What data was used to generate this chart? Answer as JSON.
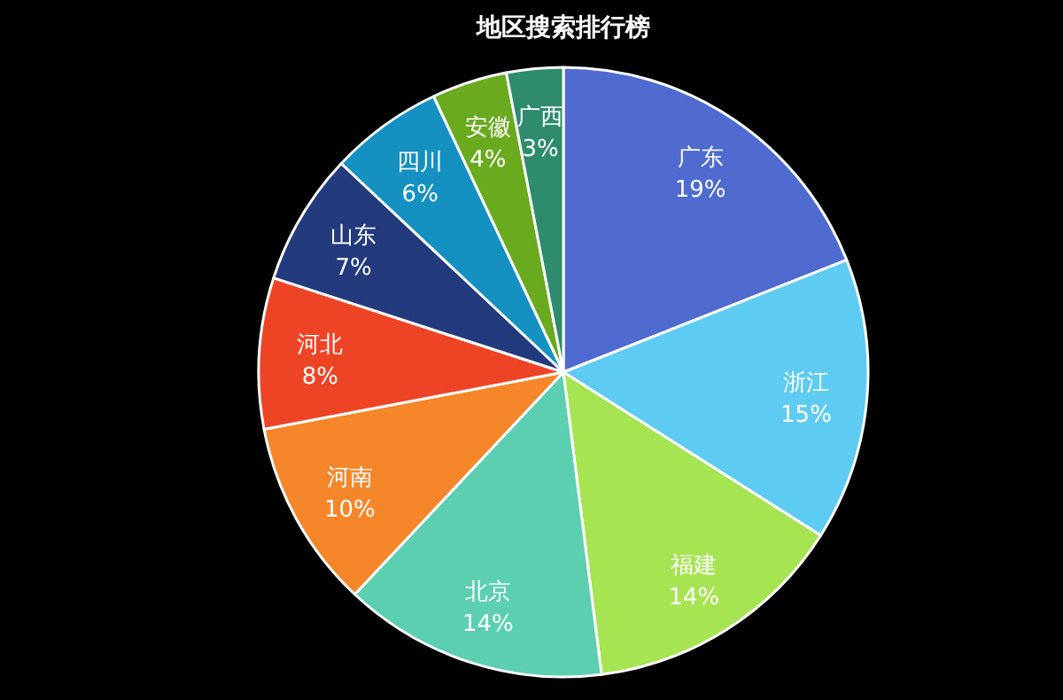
{
  "chart_data": {
    "type": "pie",
    "title": "地区搜索排行榜",
    "categories": [
      "广东",
      "浙江",
      "福建",
      "北京",
      "河南",
      "河北",
      "山东",
      "四川",
      "安徽",
      "广西"
    ],
    "values": [
      19,
      15,
      14,
      14,
      10,
      8,
      7,
      6,
      4,
      3
    ],
    "colors": [
      "#4f6bd0",
      "#5ecbf3",
      "#a6e452",
      "#5ccfb0",
      "#f5862a",
      "#ee4426",
      "#233a7c",
      "#1591c1",
      "#6aaa1e",
      "#2e8b6e"
    ],
    "value_labels": [
      "19%",
      "15%",
      "14%",
      "14%",
      "10%",
      "8%",
      "7%",
      "6%",
      "4%",
      "3%"
    ]
  }
}
